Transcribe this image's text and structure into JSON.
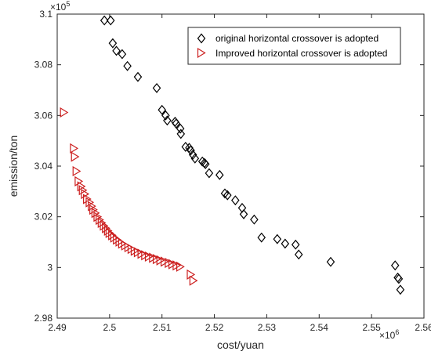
{
  "chart_data": {
    "type": "scatter",
    "title": "",
    "xlabel": "cost/yuan",
    "ylabel": "emission/ton",
    "x_exponent": "×10",
    "x_exponent_power": "6",
    "y_exponent": "×10",
    "y_exponent_power": "5",
    "xlim": [
      2.49,
      2.56
    ],
    "ylim": [
      2.98,
      3.1
    ],
    "x_ticks": [
      2.49,
      2.5,
      2.51,
      2.52,
      2.53,
      2.54,
      2.55,
      2.56
    ],
    "x_tick_labels": [
      "2.49",
      "2.5",
      "2.51",
      "2.52",
      "2.53",
      "2.54",
      "2.55",
      "2.56"
    ],
    "y_ticks": [
      2.98,
      3.0,
      3.02,
      3.04,
      3.06,
      3.08,
      3.1
    ],
    "y_tick_labels": [
      "2.98",
      "3",
      "3.02",
      "3.04",
      "3.06",
      "3.08",
      "3.1"
    ],
    "grid": false,
    "legend_position": "top-right",
    "series": [
      {
        "name": "original horizontal crossover is adopted",
        "marker": "diamond",
        "color": "#000000",
        "x": [
          2.499,
          2.5002,
          2.5006,
          2.5013,
          2.5024,
          2.5034,
          2.5054,
          2.509,
          2.51,
          2.5107,
          2.511,
          2.5125,
          2.5127,
          2.5135,
          2.5136,
          2.5145,
          2.5152,
          2.5155,
          2.5159,
          2.5163,
          2.5177,
          2.5181,
          2.5183,
          2.519,
          2.521,
          2.522,
          2.5225,
          2.524,
          2.5253,
          2.5256,
          2.5276,
          2.529,
          2.532,
          2.5335,
          2.5355,
          2.5361,
          2.5422,
          2.5545,
          2.555,
          2.5552,
          2.5555
        ],
        "y": [
          3.0975,
          3.0975,
          3.0885,
          3.0855,
          3.0842,
          3.0795,
          3.0752,
          3.0708,
          3.0622,
          3.06,
          3.058,
          3.0575,
          3.0568,
          3.0548,
          3.0527,
          3.0476,
          3.0472,
          3.0462,
          3.0445,
          3.043,
          3.0418,
          3.0412,
          3.0408,
          3.0372,
          3.0365,
          3.0292,
          3.0285,
          3.0265,
          3.0235,
          3.021,
          3.0189,
          3.0118,
          3.0112,
          3.0094,
          3.009,
          3.0051,
          3.0022,
          3.0008,
          2.996,
          2.9955,
          2.9912
        ]
      },
      {
        "name": "Improved horizontal crossover is adopted",
        "marker": "triangle-right",
        "color": "#cc1f1f",
        "x": [
          2.4913,
          2.4932,
          2.4934,
          2.4937,
          2.4941,
          2.4946,
          2.4949,
          2.4953,
          2.4957,
          2.4962,
          2.4966,
          2.4969,
          2.4973,
          2.4977,
          2.4981,
          2.4985,
          2.4989,
          2.4993,
          2.4997,
          2.5,
          2.5005,
          2.5009,
          2.5014,
          2.5019,
          2.5024,
          2.503,
          2.5036,
          2.5042,
          2.5048,
          2.5054,
          2.5061,
          2.5068,
          2.5075,
          2.5083,
          2.509,
          2.5097,
          2.5105,
          2.5113,
          2.512,
          2.5128,
          2.5135,
          2.5155,
          2.516
        ],
        "y": [
          3.0612,
          3.047,
          3.0437,
          3.038,
          3.034,
          3.032,
          3.0305,
          3.029,
          3.027,
          3.0257,
          3.0242,
          3.0228,
          3.0215,
          3.02,
          3.0188,
          3.0176,
          3.0165,
          3.0155,
          3.0145,
          3.0136,
          3.0127,
          3.0118,
          3.011,
          3.0102,
          3.0094,
          3.0087,
          3.008,
          3.0073,
          3.0066,
          3.006,
          3.0054,
          3.0048,
          3.0043,
          3.0038,
          3.0033,
          3.0028,
          3.0023,
          3.0018,
          3.0013,
          3.0008,
          3.0003,
          2.9972,
          2.9948
        ]
      }
    ]
  },
  "colors": {
    "axis": "#262626",
    "black_series": "#000000",
    "red_series": "#cc1f1f"
  }
}
